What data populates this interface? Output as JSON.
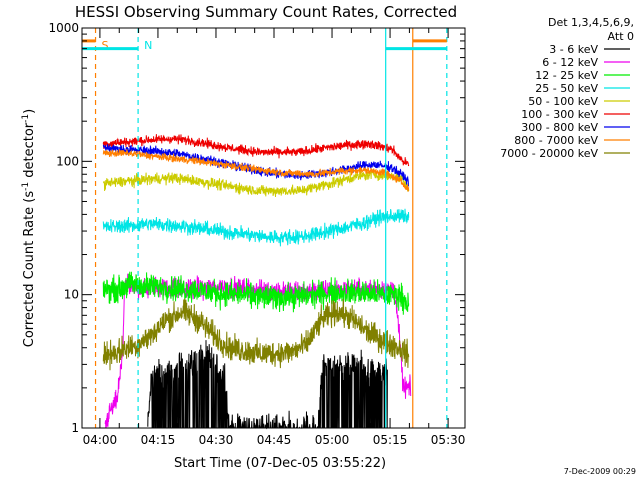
{
  "chart_data": {
    "type": "line",
    "title": "HESSI Observing Summary Count Rates, Corrected",
    "xlabel": "Start Time (07-Dec-05 03:55:22)",
    "ylabel_main": "Corrected Count Rate (s",
    "ylabel_sup1": "-1",
    "ylabel_mid": " detector",
    "ylabel_sup2": "-1",
    "ylabel_end": ")",
    "x_axis": {
      "unit": "minutes after 03:55:22",
      "range": [
        0,
        99
      ],
      "ticks": [
        {
          "label": "04:00",
          "value": 4.63
        },
        {
          "label": "04:15",
          "value": 19.63
        },
        {
          "label": "04:30",
          "value": 34.63
        },
        {
          "label": "04:45",
          "value": 49.63
        },
        {
          "label": "05:00",
          "value": 64.63
        },
        {
          "label": "05:15",
          "value": 79.63
        },
        {
          "label": "05:30",
          "value": 94.63
        }
      ]
    },
    "y_axis": {
      "scale": "log",
      "range": [
        1,
        1000
      ],
      "ticks": [
        {
          "label": "1",
          "value": 1
        },
        {
          "label": "10",
          "value": 10
        },
        {
          "label": "100",
          "value": 100
        },
        {
          "label": "1000",
          "value": 1000
        }
      ]
    },
    "legend": {
      "placement": "right",
      "header1": "Det 1,3,4,5,6,9,",
      "header2": "Att 0"
    },
    "markers": [
      {
        "label": "S",
        "x": 3.5,
        "color": "#ff7f00",
        "style": "dashed"
      },
      {
        "label": "N",
        "x": 14.5,
        "color": "#00e5e5",
        "style": "dashed"
      },
      {
        "label": "",
        "x": 78.5,
        "color": "#00e5e5",
        "style": "solid"
      },
      {
        "label": "",
        "x": 85.5,
        "color": "#ff7f00",
        "style": "solid"
      },
      {
        "label": "",
        "x": 94.3,
        "color": "#00e5e5",
        "style": "dashed"
      }
    ],
    "flag_bars": [
      {
        "color": "#00e5e5",
        "y": 700,
        "segments": [
          [
            0,
            14.5
          ],
          [
            78.5,
            94.3
          ]
        ]
      },
      {
        "color": "#ff7f00",
        "y": 800,
        "segments": [
          [
            0,
            3.5
          ],
          [
            85.5,
            94.3
          ]
        ]
      }
    ],
    "series": [
      {
        "name": "3 - 6 keV",
        "color": "#000000",
        "noise": 0.16,
        "dropout": 0.8,
        "points": [
          [
            17,
            1.0
          ],
          [
            18,
            2.5
          ],
          [
            20,
            2.5
          ],
          [
            23,
            2.5
          ],
          [
            26,
            3.0
          ],
          [
            29,
            3.2
          ],
          [
            31,
            3.5
          ],
          [
            33,
            3.3
          ],
          [
            35,
            2.8
          ],
          [
            37,
            2.5
          ],
          [
            38,
            1.0
          ],
          [
            61,
            1.0
          ],
          [
            62,
            2.8
          ],
          [
            65,
            2.9
          ],
          [
            68,
            3.0
          ],
          [
            71,
            2.9
          ],
          [
            75,
            2.6
          ],
          [
            79,
            2.5
          ]
        ]
      },
      {
        "name": "6 - 12 keV",
        "color": "#ee00ee",
        "noise": 0.11,
        "points": [
          [
            6,
            1.0
          ],
          [
            7,
            1.3
          ],
          [
            9,
            1.6
          ],
          [
            10.5,
            3.5
          ],
          [
            11,
            12
          ],
          [
            14,
            11
          ],
          [
            20,
            11.5
          ],
          [
            27,
            11
          ],
          [
            35,
            11.5
          ],
          [
            44,
            11
          ],
          [
            52,
            10.5
          ],
          [
            60,
            10.5
          ],
          [
            66,
            11
          ],
          [
            74,
            11
          ],
          [
            80,
            11
          ],
          [
            81,
            10
          ],
          [
            82,
            5
          ],
          [
            83,
            2
          ],
          [
            85,
            2
          ]
        ]
      },
      {
        "name": "12 - 25 keV",
        "color": "#00ee00",
        "noise": 0.14,
        "points": [
          [
            5.5,
            11
          ],
          [
            10,
            11
          ],
          [
            12,
            12
          ],
          [
            18,
            11.5
          ],
          [
            24,
            11.2
          ],
          [
            30,
            10.8
          ],
          [
            36,
            10.2
          ],
          [
            42,
            10
          ],
          [
            48,
            9.5
          ],
          [
            54,
            9.6
          ],
          [
            60,
            10
          ],
          [
            66,
            10.5
          ],
          [
            72,
            10.3
          ],
          [
            78,
            10
          ],
          [
            82,
            10
          ],
          [
            84.5,
            8.5
          ]
        ]
      },
      {
        "name": "25 - 50 keV",
        "color": "#00e5e5",
        "noise": 0.08,
        "points": [
          [
            5.5,
            32
          ],
          [
            12,
            33
          ],
          [
            18,
            34
          ],
          [
            25,
            33
          ],
          [
            32,
            31
          ],
          [
            40,
            29
          ],
          [
            48,
            27
          ],
          [
            56,
            27
          ],
          [
            64,
            30
          ],
          [
            72,
            34
          ],
          [
            77,
            38
          ],
          [
            82,
            39
          ],
          [
            84.5,
            38
          ]
        ]
      },
      {
        "name": "50 - 100 keV",
        "color": "#cccc00",
        "noise": 0.06,
        "points": [
          [
            5.5,
            68
          ],
          [
            12,
            71
          ],
          [
            18,
            74
          ],
          [
            24,
            75
          ],
          [
            30,
            71
          ],
          [
            38,
            65
          ],
          [
            46,
            60
          ],
          [
            56,
            60
          ],
          [
            64,
            68
          ],
          [
            70,
            76
          ],
          [
            75,
            80
          ],
          [
            80,
            78
          ],
          [
            83,
            74
          ],
          [
            84.5,
            60
          ]
        ]
      },
      {
        "name": "100 - 300 keV",
        "color": "#ee0000",
        "noise": 0.05,
        "points": [
          [
            5.5,
            135
          ],
          [
            12,
            140
          ],
          [
            18,
            145
          ],
          [
            24,
            148
          ],
          [
            30,
            140
          ],
          [
            38,
            126
          ],
          [
            46,
            117
          ],
          [
            56,
            117
          ],
          [
            62,
            125
          ],
          [
            68,
            132
          ],
          [
            74,
            136
          ],
          [
            80,
            124
          ],
          [
            83,
            100
          ],
          [
            84.5,
            95
          ]
        ]
      },
      {
        "name": "300 - 800 keV",
        "color": "#0000ee",
        "noise": 0.05,
        "points": [
          [
            5.5,
            127
          ],
          [
            12,
            122
          ],
          [
            18,
            120
          ],
          [
            25,
            114
          ],
          [
            32,
            104
          ],
          [
            40,
            92
          ],
          [
            48,
            82
          ],
          [
            56,
            78
          ],
          [
            63,
            82
          ],
          [
            70,
            90
          ],
          [
            75,
            95
          ],
          [
            80,
            90
          ],
          [
            83,
            78
          ],
          [
            84.5,
            70
          ]
        ]
      },
      {
        "name": "800 - 7000 keV",
        "color": "#ff7f00",
        "noise": 0.04,
        "points": [
          [
            5.5,
            115
          ],
          [
            12,
            115
          ],
          [
            20,
            108
          ],
          [
            28,
            102
          ],
          [
            36,
            95
          ],
          [
            44,
            88
          ],
          [
            52,
            82
          ],
          [
            60,
            80
          ],
          [
            66,
            84
          ],
          [
            72,
            86
          ],
          [
            78,
            83
          ],
          [
            82,
            72
          ],
          [
            84.5,
            62
          ]
        ]
      },
      {
        "name": "7000 - 20000 keV",
        "color": "#808000",
        "noise": 0.14,
        "points": [
          [
            5.5,
            3.5
          ],
          [
            10,
            3.8
          ],
          [
            14,
            4.2
          ],
          [
            18,
            5.0
          ],
          [
            22,
            6.5
          ],
          [
            26,
            7.5
          ],
          [
            30,
            6.5
          ],
          [
            34,
            5.0
          ],
          [
            38,
            4.0
          ],
          [
            46,
            3.6
          ],
          [
            54,
            3.7
          ],
          [
            58,
            4.2
          ],
          [
            62,
            6.5
          ],
          [
            66,
            7.5
          ],
          [
            70,
            6.5
          ],
          [
            74,
            5.2
          ],
          [
            78,
            4.5
          ],
          [
            82,
            4.0
          ],
          [
            84.5,
            3.5
          ]
        ]
      }
    ]
  },
  "footer": {
    "timestamp": "7-Dec-2009 00:29"
  }
}
